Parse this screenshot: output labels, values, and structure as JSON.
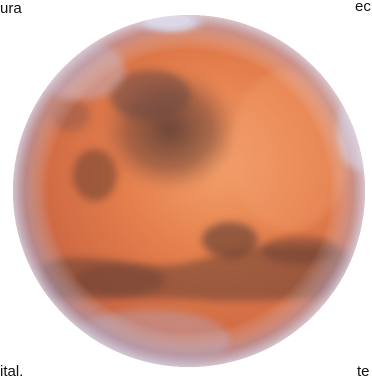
{
  "text_fragments": {
    "top_left": "ura",
    "top_right": "ec",
    "bottom_left": "ital.",
    "bottom_right": "te"
  },
  "planet": {
    "icon": "mars-planet-photo",
    "colors": {
      "surface": "#e07a4a",
      "surface_light": "#f09a66",
      "dark_region": "#6e4a3e",
      "polar_cap": "#f4f4f6",
      "limb_haze": "#b9b3cc"
    }
  }
}
